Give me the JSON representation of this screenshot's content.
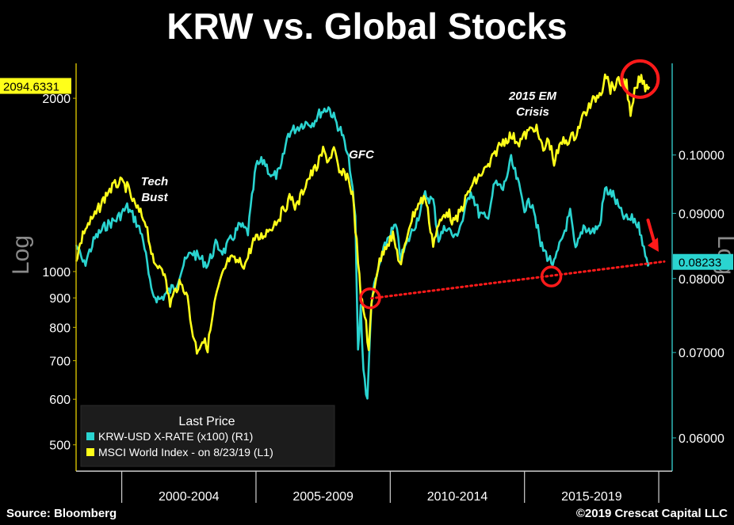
{
  "title": "KRW vs. Global Stocks",
  "footer": {
    "source": "Source: Bloomberg",
    "copyright": "©2019 Crescat Capital LLC"
  },
  "colors": {
    "krw": "#2ad4d0",
    "msci": "#ffff1a",
    "axis_left": "#c8b400",
    "axis_right": "#2fb8b8",
    "annotation": "#ff1a1a",
    "background": "#000000"
  },
  "chart_data": {
    "type": "line",
    "x_categories": [
      "2000-2004",
      "2005-2009",
      "2010-2014",
      "2015-2019"
    ],
    "x_range": [
      1998.3,
      2020.5
    ],
    "left_axis": {
      "label": "Log",
      "scale": "log",
      "range": [
        450,
        2300
      ],
      "ticks": [
        500,
        600,
        700,
        800,
        900,
        1000,
        2000
      ],
      "tick_labels": [
        "500",
        "600",
        "700",
        "800",
        "900",
        "1000",
        "2000"
      ],
      "last_value_label": "2094.6331"
    },
    "right_axis": {
      "label": "Log",
      "scale": "log",
      "range": [
        0.0565,
        0.118
      ],
      "ticks": [
        0.06,
        0.07,
        0.08,
        0.09,
        0.1
      ],
      "tick_labels": [
        "0.06000",
        "0.07000",
        "0.08000",
        "0.09000",
        "0.10000"
      ],
      "last_value_label": "0.08233"
    },
    "legend": {
      "title": "Last Price",
      "placement": "bottom-left",
      "entries": [
        "KRW-USD X-RATE (x100)  (R1)",
        "MSCI World Index -  on 8/23/19  (L1)"
      ]
    },
    "annotations": [
      "Tech Bust",
      "GFC",
      "2015 EM Crisis"
    ],
    "series": [
      {
        "name": "MSCI World Index",
        "axis": "left",
        "points": [
          [
            1998.3,
            1050
          ],
          [
            1998.6,
            1180
          ],
          [
            1999.0,
            1250
          ],
          [
            1999.5,
            1380
          ],
          [
            1999.9,
            1430
          ],
          [
            2000.2,
            1400
          ],
          [
            2000.5,
            1300
          ],
          [
            2000.9,
            1220
          ],
          [
            2001.2,
            1020
          ],
          [
            2001.5,
            1030
          ],
          [
            2001.8,
            880
          ],
          [
            2002.1,
            950
          ],
          [
            2002.4,
            930
          ],
          [
            2002.6,
            800
          ],
          [
            2002.8,
            730
          ],
          [
            2003.0,
            760
          ],
          [
            2003.2,
            740
          ],
          [
            2003.5,
            900
          ],
          [
            2003.8,
            1000
          ],
          [
            2004.0,
            1050
          ],
          [
            2004.3,
            1040
          ],
          [
            2004.6,
            1030
          ],
          [
            2004.9,
            1130
          ],
          [
            2005.2,
            1150
          ],
          [
            2005.6,
            1200
          ],
          [
            2005.9,
            1250
          ],
          [
            2006.3,
            1350
          ],
          [
            2006.5,
            1290
          ],
          [
            2006.9,
            1440
          ],
          [
            2007.3,
            1530
          ],
          [
            2007.5,
            1620
          ],
          [
            2007.7,
            1560
          ],
          [
            2007.9,
            1630
          ],
          [
            2008.1,
            1480
          ],
          [
            2008.4,
            1470
          ],
          [
            2008.6,
            1360
          ],
          [
            2008.8,
            1050
          ],
          [
            2008.9,
            900
          ],
          [
            2009.1,
            820
          ],
          [
            2009.2,
            720
          ],
          [
            2009.3,
            880
          ],
          [
            2009.5,
            1000
          ],
          [
            2009.8,
            1110
          ],
          [
            2010.1,
            1150
          ],
          [
            2010.4,
            1020
          ],
          [
            2010.7,
            1200
          ],
          [
            2011.0,
            1300
          ],
          [
            2011.3,
            1350
          ],
          [
            2011.6,
            1120
          ],
          [
            2011.8,
            1200
          ],
          [
            2012.1,
            1280
          ],
          [
            2012.4,
            1210
          ],
          [
            2012.7,
            1300
          ],
          [
            2013.0,
            1400
          ],
          [
            2013.4,
            1480
          ],
          [
            2013.7,
            1530
          ],
          [
            2014.0,
            1640
          ],
          [
            2014.3,
            1700
          ],
          [
            2014.5,
            1720
          ],
          [
            2014.8,
            1680
          ],
          [
            2015.1,
            1740
          ],
          [
            2015.4,
            1790
          ],
          [
            2015.7,
            1620
          ],
          [
            2015.9,
            1700
          ],
          [
            2016.1,
            1550
          ],
          [
            2016.4,
            1680
          ],
          [
            2016.7,
            1700
          ],
          [
            2016.9,
            1730
          ],
          [
            2017.2,
            1870
          ],
          [
            2017.5,
            1960
          ],
          [
            2017.9,
            2080
          ],
          [
            2018.0,
            2230
          ],
          [
            2018.2,
            2080
          ],
          [
            2018.5,
            2130
          ],
          [
            2018.8,
            2130
          ],
          [
            2018.95,
            1840
          ],
          [
            2019.1,
            2040
          ],
          [
            2019.3,
            2170
          ],
          [
            2019.5,
            2100
          ],
          [
            2019.65,
            2094.63
          ]
        ]
      },
      {
        "name": "KRW-USD X-RATE (x100)",
        "axis": "right",
        "points": [
          [
            1998.3,
            0.085
          ],
          [
            1998.6,
            0.082
          ],
          [
            1999.0,
            0.086
          ],
          [
            1999.4,
            0.088
          ],
          [
            1999.8,
            0.089
          ],
          [
            2000.2,
            0.091
          ],
          [
            2000.5,
            0.089
          ],
          [
            2000.8,
            0.086
          ],
          [
            2001.1,
            0.078
          ],
          [
            2001.4,
            0.077
          ],
          [
            2001.7,
            0.078
          ],
          [
            2002.0,
            0.079
          ],
          [
            2002.3,
            0.082
          ],
          [
            2002.6,
            0.084
          ],
          [
            2002.9,
            0.083
          ],
          [
            2003.2,
            0.082
          ],
          [
            2003.5,
            0.085
          ],
          [
            2003.8,
            0.084
          ],
          [
            2004.1,
            0.086
          ],
          [
            2004.4,
            0.088
          ],
          [
            2004.7,
            0.087
          ],
          [
            2005.0,
            0.098
          ],
          [
            2005.3,
            0.099
          ],
          [
            2005.6,
            0.096
          ],
          [
            2005.9,
            0.097
          ],
          [
            2006.2,
            0.104
          ],
          [
            2006.5,
            0.105
          ],
          [
            2006.8,
            0.106
          ],
          [
            2007.1,
            0.106
          ],
          [
            2007.4,
            0.108
          ],
          [
            2007.7,
            0.109
          ],
          [
            2007.9,
            0.107
          ],
          [
            2008.2,
            0.104
          ],
          [
            2008.5,
            0.098
          ],
          [
            2008.7,
            0.089
          ],
          [
            2008.8,
            0.07
          ],
          [
            2008.9,
            0.076
          ],
          [
            2009.0,
            0.068
          ],
          [
            2009.15,
            0.064
          ],
          [
            2009.3,
            0.077
          ],
          [
            2009.6,
            0.082
          ],
          [
            2009.9,
            0.086
          ],
          [
            2010.2,
            0.088
          ],
          [
            2010.4,
            0.083
          ],
          [
            2010.7,
            0.086
          ],
          [
            2011.0,
            0.089
          ],
          [
            2011.3,
            0.093
          ],
          [
            2011.6,
            0.092
          ],
          [
            2011.8,
            0.086
          ],
          [
            2012.1,
            0.088
          ],
          [
            2012.4,
            0.086
          ],
          [
            2012.7,
            0.089
          ],
          [
            2013.0,
            0.094
          ],
          [
            2013.3,
            0.09
          ],
          [
            2013.6,
            0.089
          ],
          [
            2013.9,
            0.095
          ],
          [
            2014.2,
            0.094
          ],
          [
            2014.5,
            0.099
          ],
          [
            2014.7,
            0.096
          ],
          [
            2015.0,
            0.091
          ],
          [
            2015.3,
            0.092
          ],
          [
            2015.6,
            0.085
          ],
          [
            2015.9,
            0.083
          ],
          [
            2016.1,
            0.082
          ],
          [
            2016.4,
            0.086
          ],
          [
            2016.7,
            0.09
          ],
          [
            2016.9,
            0.084
          ],
          [
            2017.2,
            0.088
          ],
          [
            2017.5,
            0.087
          ],
          [
            2017.8,
            0.088
          ],
          [
            2018.0,
            0.094
          ],
          [
            2018.3,
            0.093
          ],
          [
            2018.6,
            0.09
          ],
          [
            2018.8,
            0.089
          ],
          [
            2019.1,
            0.089
          ],
          [
            2019.35,
            0.087
          ],
          [
            2019.5,
            0.083
          ],
          [
            2019.65,
            0.08233
          ]
        ]
      }
    ]
  }
}
